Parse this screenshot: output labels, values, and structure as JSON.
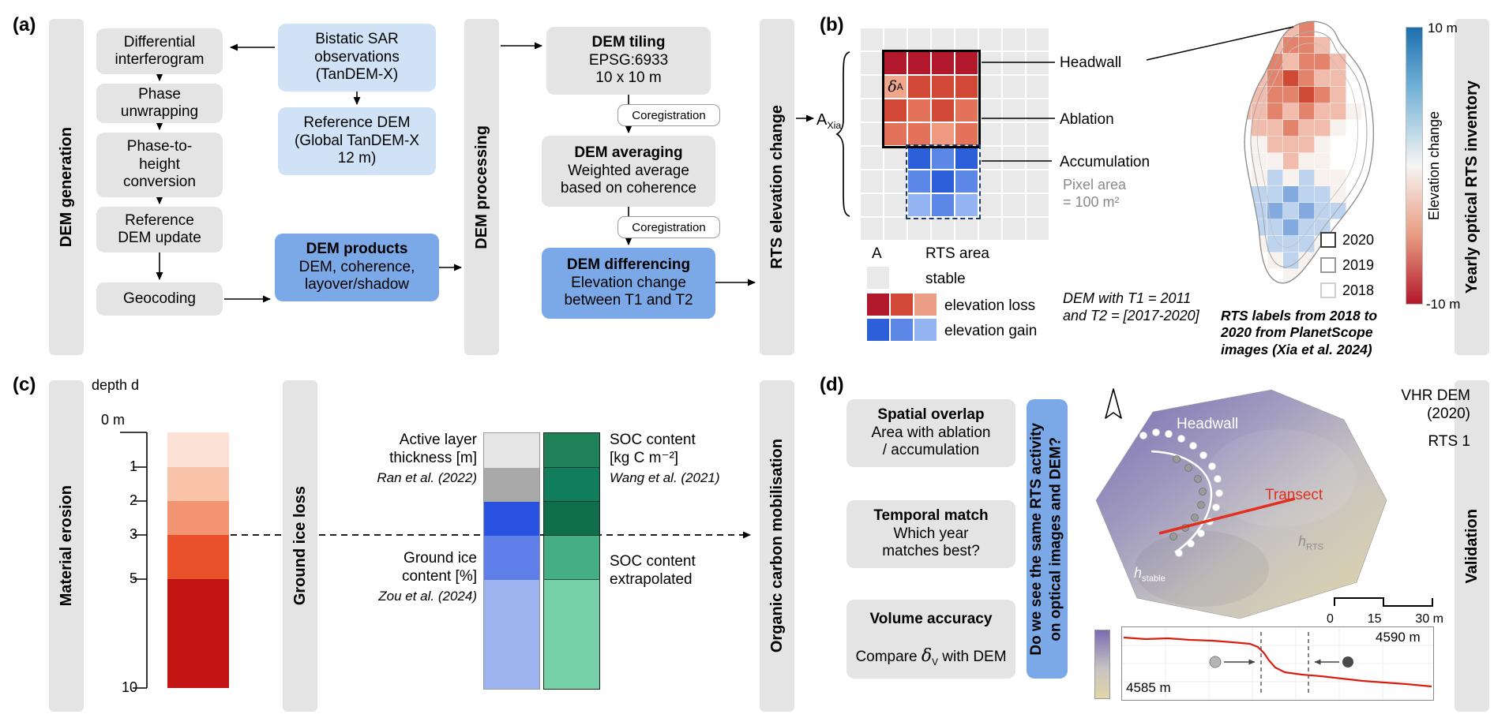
{
  "colors": {
    "box_gray": "#e4e4e4",
    "box_blue_light": "#cfe2f6",
    "box_blue": "#7ba8e6",
    "stable": "#e9e9e9",
    "loss_legend": [
      "#b2182b",
      "#d14836",
      "#eb9d86"
    ],
    "gain_legend": [
      "#2c5fd8",
      "#5d87e6",
      "#93b4f0"
    ],
    "colorbar_top": "#1c6fb0",
    "colorbar_bottom": "#b2182b",
    "transect_red": "#e03020"
  },
  "panel_a": {
    "tag": "(a)",
    "bar_left": "DEM generation",
    "bar_mid": "DEM processing",
    "bar_right": "RTS elevation change",
    "steps": [
      "Differential\ninterferogram",
      "Phase\nunwrapping",
      "Phase-to-\nheight\nconversion",
      "Reference\nDEM update",
      "Geocoding"
    ],
    "bistatic": "Bistatic SAR\nobservations\n(TanDEM-X)",
    "reference_dem": "Reference DEM\n(Global TanDEM-X\n12 m)",
    "products_title": "DEM products",
    "products_body": "DEM, coherence,\nlayover/shadow",
    "tiling_title": "DEM tiling",
    "tiling_body": "EPSG:6933\n10 x 10 m",
    "coreg1": "Coregistration",
    "coreg2": "Coregistration",
    "averaging_title": "DEM averaging",
    "averaging_body": "Weighted average\nbased on coherence",
    "differencing_title": "DEM differencing",
    "differencing_body": "Elevation change\nbetween T1 and T2"
  },
  "panel_b": {
    "tag": "(b)",
    "bar_right": "Yearly optical RTS inventory",
    "area_symbol": "A",
    "area_sub": "Xia",
    "delta": "δ",
    "delta_sub": "A",
    "grid": [
      "ssssssss",
      "sAAAAsss",
      "sdBBBsss",
      "sBCBCsss",
      "sCCDCsss",
      "ssabasss",
      "ssbabsss",
      "sscbcsss",
      "ssssssss"
    ],
    "grid_palette": {
      "s": "#e9e9e9",
      "A": "#b2182b",
      "B": "#d14836",
      "C": "#e2725a",
      "D": "#ef9a80",
      "d": "#f0a68c",
      "a": "#2c5fd8",
      "b": "#5d87e6",
      "c": "#93b4f0"
    },
    "label_headwall": "Headwall",
    "label_ablation": "Ablation",
    "label_accumulation": "Accumulation",
    "pixel_area": "Pixel area\n= 100 m²",
    "legend_area_symbol": "A",
    "legend_area_label": "RTS area",
    "legend_stable": "stable",
    "legend_loss": "elevation loss",
    "legend_gain": "elevation gain",
    "dem_note": "DEM with T1 = 2011\nand T2 = [2017-2020]",
    "years": [
      "2020",
      "2019",
      "2018"
    ],
    "year_borders": [
      "#3a3a3a",
      "#9a9a9a",
      "#cfcfcf"
    ],
    "rts_note": "RTS labels from 2018 to\n2020 from PlanetScope\nimages (Xia et al. 2024)",
    "cbar_top": "10 m",
    "cbar_bottom": "-10 m",
    "cbar_label": "Elevation change",
    "blob": [
      "...rR....",
      "..rRRr...",
      "..RrRRr..",
      ".rRDRrr..",
      ".rRRDRr..",
      "rrRrRrrw.",
      ".rrRrrw..",
      ".wrrrw...",
      ".wwrww...",
      ".wbwbww..",
      "wbbBbbw..",
      "wbBbBbb..",
      ".bbBbb...",
      ".wbbbw...",
      "..wbw....",
      "...ww...."
    ],
    "blob_palette": {
      "r": "#f2bcac",
      "R": "#e4836c",
      "D": "#cf4a34",
      "b": "#bdd3ee",
      "B": "#82aade",
      "w": "#f7f2ee"
    }
  },
  "panel_c": {
    "tag": "(c)",
    "bar_left": "Material erosion",
    "bar_mid": "Ground ice loss",
    "bar_right": "Organic carbon mobilisation",
    "depth_label": "depth d",
    "zero_label": "0 m",
    "ticks": [
      "1",
      "2",
      "3",
      "5",
      "10"
    ],
    "red_colors": [
      "#fce1d6",
      "#f8c3a9",
      "#f29372",
      "#e9512d",
      "#c31414"
    ],
    "left_col_colors": [
      "#e6e6e6",
      "#a8a8a8",
      "#2a52e0",
      "#5f7fe8",
      "#9eb4f0"
    ],
    "right_col_colors": [
      "#1f8257",
      "#127d5c",
      "#0e6e4b",
      "#45ae83",
      "#77d1a6"
    ],
    "labels": {
      "active_layer": "Active layer\nthickness [m]",
      "active_ref": "Ran et al. (2022)",
      "ground_ice": "Ground ice\ncontent [%]",
      "ground_ref": "Zou et al. (2024)",
      "soc": "SOC content\n[kg C m⁻²]",
      "soc_ref": "Wang et al. (2021)",
      "soc_ext": "SOC content\nextrapolated"
    }
  },
  "panel_d": {
    "tag": "(d)",
    "bar_right": "Validation",
    "box1_title": "Spatial overlap",
    "box1_body": "Area with ablation\n/ accumulation",
    "box2_title": "Temporal match",
    "box2_body": "Which year\nmatches best?",
    "box3_title": "Volume accuracy",
    "box3_pre": "Compare ",
    "box3_delta": "δ",
    "box3_delta_sub": "V",
    "box3_post": " with DEM",
    "question": "Do we see the same RTS activity\non optical images and DEM?",
    "map_title": "VHR DEM\n(2020)",
    "map_subtitle": "RTS 1",
    "headwall": "Headwall",
    "transect": "Transect",
    "h_rts_main": "h",
    "h_rts_sub": "RTS",
    "h_stable_main": "h",
    "h_stable_sub": "stable",
    "scale": [
      "0",
      "15",
      "30 m"
    ],
    "profile_top": "4590 m",
    "profile_bottom": "4585 m"
  }
}
